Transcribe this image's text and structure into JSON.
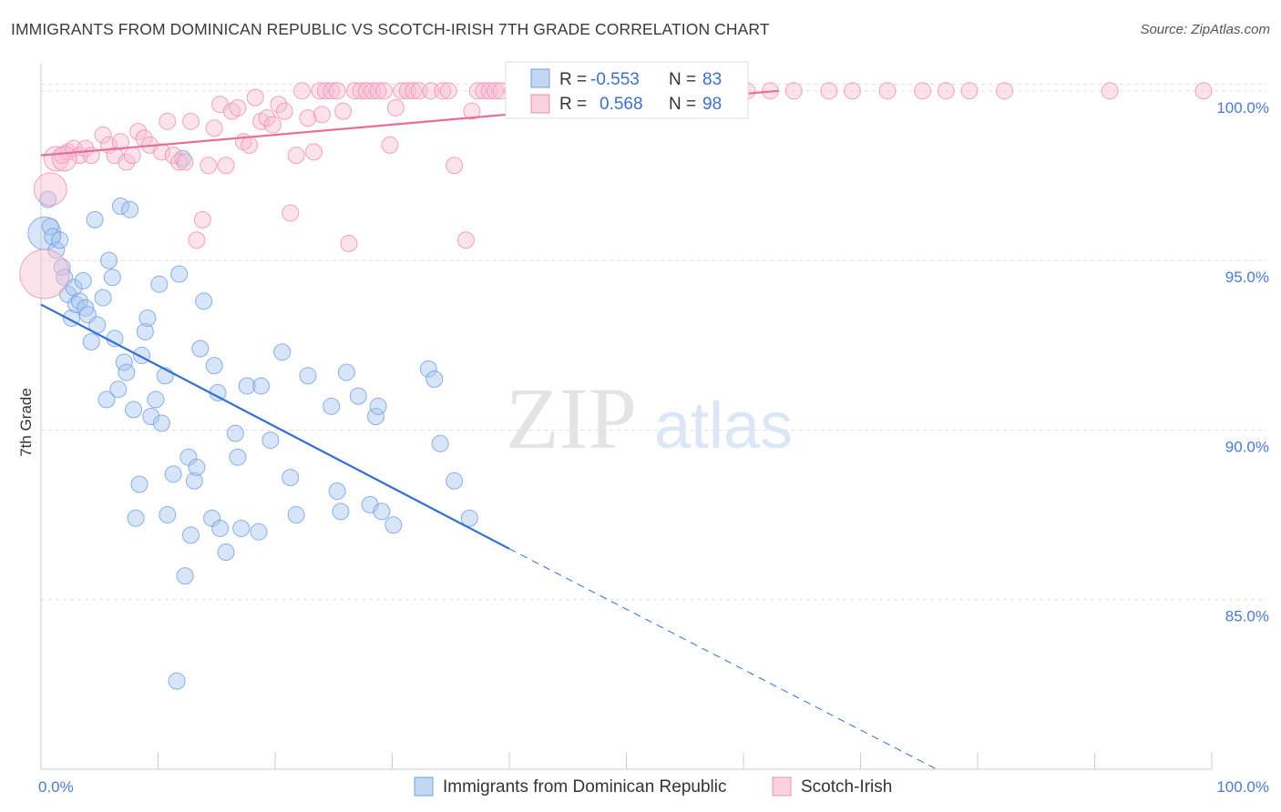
{
  "title": "IMMIGRANTS FROM DOMINICAN REPUBLIC VS SCOTCH-IRISH 7TH GRADE CORRELATION CHART",
  "source": "Source: ZipAtlas.com",
  "watermark": {
    "zip": "ZIP",
    "atlas": "atlas"
  },
  "colors": {
    "blue": "#6f9fe0",
    "blue_fill": "#a9c6f0",
    "blue_line": "#2f6fd6",
    "pink": "#ee8fb0",
    "pink_fill": "#f7bfd3",
    "pink_line": "#e86d98",
    "tick": "#4a7bd0",
    "grid": "#dddddd"
  },
  "chart_data": {
    "type": "scatter",
    "xlabel": "",
    "ylabel": "7th Grade",
    "xlim": [
      0,
      100
    ],
    "ylim": [
      80.0,
      100.8
    ],
    "x_tick_labels": [
      {
        "value": 0,
        "label": "0.0%"
      },
      {
        "value": 100,
        "label": "100.0%"
      }
    ],
    "y_ticks": [
      {
        "value": 85,
        "label": "85.0%"
      },
      {
        "value": 90,
        "label": "90.0%"
      },
      {
        "value": 95,
        "label": "95.0%"
      },
      {
        "value": 100,
        "label": "100.0%"
      }
    ],
    "legend": {
      "position": "top-center",
      "entries": [
        {
          "r_label": "R =",
          "r_value": "-0.553",
          "n_label": "N =",
          "n_value": "83"
        },
        {
          "r_label": "R =",
          "r_value": "0.568",
          "n_label": "N =",
          "n_value": "98"
        }
      ]
    },
    "series": [
      {
        "name": "Immigrants from Dominican Republic",
        "color": "#6f9fe0",
        "trend": {
          "x0": 0,
          "y0": 93.7,
          "x1": 40,
          "y1": 86.5,
          "dashed_to_x": 76.5,
          "dashed_to_y": 80.0
        },
        "points": [
          [
            0.3,
            95.8,
            2
          ],
          [
            0.6,
            96.8,
            1
          ],
          [
            0.8,
            96.0,
            1
          ],
          [
            1.0,
            95.7,
            1
          ],
          [
            1.3,
            95.3,
            1
          ],
          [
            1.6,
            95.6,
            1
          ],
          [
            1.8,
            94.8,
            1
          ],
          [
            2.0,
            94.5,
            1
          ],
          [
            2.3,
            94.0,
            1
          ],
          [
            2.6,
            93.3,
            1
          ],
          [
            2.8,
            94.2,
            1
          ],
          [
            3.0,
            93.7,
            1
          ],
          [
            3.3,
            93.8,
            1
          ],
          [
            3.6,
            94.4,
            1
          ],
          [
            3.8,
            93.6,
            1
          ],
          [
            4.0,
            93.4,
            1
          ],
          [
            4.3,
            92.6,
            1
          ],
          [
            4.6,
            96.2,
            1
          ],
          [
            4.8,
            93.1,
            1
          ],
          [
            5.3,
            93.9,
            1
          ],
          [
            5.6,
            90.9,
            1
          ],
          [
            5.8,
            95.0,
            1
          ],
          [
            6.1,
            94.5,
            1
          ],
          [
            6.3,
            92.7,
            1
          ],
          [
            6.6,
            91.2,
            1
          ],
          [
            6.8,
            96.6,
            1
          ],
          [
            7.1,
            92.0,
            1
          ],
          [
            7.3,
            91.7,
            1
          ],
          [
            7.6,
            96.5,
            1
          ],
          [
            7.9,
            90.6,
            1
          ],
          [
            8.1,
            87.4,
            1
          ],
          [
            8.4,
            88.4,
            1
          ],
          [
            8.6,
            92.2,
            1
          ],
          [
            8.9,
            92.9,
            1
          ],
          [
            9.1,
            93.3,
            1
          ],
          [
            9.4,
            90.4,
            1
          ],
          [
            9.8,
            90.9,
            1
          ],
          [
            10.1,
            94.3,
            1
          ],
          [
            10.3,
            90.2,
            1
          ],
          [
            10.6,
            91.6,
            1
          ],
          [
            10.8,
            87.5,
            1
          ],
          [
            11.3,
            88.7,
            1
          ],
          [
            11.6,
            82.6,
            1
          ],
          [
            11.8,
            94.6,
            1
          ],
          [
            12.1,
            98.0,
            1
          ],
          [
            12.3,
            85.7,
            1
          ],
          [
            12.6,
            89.2,
            1
          ],
          [
            12.8,
            86.9,
            1
          ],
          [
            13.1,
            88.5,
            1
          ],
          [
            13.3,
            88.9,
            1
          ],
          [
            13.6,
            92.4,
            1
          ],
          [
            13.9,
            93.8,
            1
          ],
          [
            14.6,
            87.4,
            1
          ],
          [
            14.8,
            91.9,
            1
          ],
          [
            15.1,
            91.1,
            1
          ],
          [
            15.3,
            87.1,
            1
          ],
          [
            15.8,
            86.4,
            1
          ],
          [
            16.6,
            89.9,
            1
          ],
          [
            16.8,
            89.2,
            1
          ],
          [
            17.1,
            87.1,
            1
          ],
          [
            17.6,
            91.3,
            1
          ],
          [
            18.6,
            87.0,
            1
          ],
          [
            18.8,
            91.3,
            1
          ],
          [
            19.6,
            89.7,
            1
          ],
          [
            20.6,
            92.3,
            1
          ],
          [
            21.3,
            88.6,
            1
          ],
          [
            21.8,
            87.5,
            1
          ],
          [
            22.8,
            91.6,
            1
          ],
          [
            24.8,
            90.7,
            1
          ],
          [
            25.3,
            88.2,
            1
          ],
          [
            25.6,
            87.6,
            1
          ],
          [
            26.1,
            91.7,
            1
          ],
          [
            27.1,
            91.0,
            1
          ],
          [
            28.1,
            87.8,
            1
          ],
          [
            28.6,
            90.4,
            1
          ],
          [
            28.8,
            90.7,
            1
          ],
          [
            29.1,
            87.6,
            1
          ],
          [
            30.1,
            87.2,
            1
          ],
          [
            33.1,
            91.8,
            1
          ],
          [
            33.6,
            91.5,
            1
          ],
          [
            34.1,
            89.6,
            1
          ],
          [
            35.3,
            88.5,
            1
          ],
          [
            36.6,
            87.4,
            1
          ]
        ]
      },
      {
        "name": "Scotch-Irish",
        "color": "#ee8fb0",
        "trend": {
          "x0": 0,
          "y0": 98.1,
          "x1": 63,
          "y1": 100.0
        },
        "points": [
          [
            0.3,
            94.6,
            3
          ],
          [
            0.8,
            97.1,
            2
          ],
          [
            1.3,
            98.0,
            1.5
          ],
          [
            1.8,
            98.1,
            1
          ],
          [
            2.3,
            98.2,
            1
          ],
          [
            2.8,
            98.3,
            1
          ],
          [
            3.3,
            98.1,
            1
          ],
          [
            3.8,
            98.3,
            1
          ],
          [
            4.3,
            98.1,
            1
          ],
          [
            5.3,
            98.7,
            1
          ],
          [
            5.8,
            98.4,
            1
          ],
          [
            6.3,
            98.1,
            1
          ],
          [
            6.8,
            98.5,
            1
          ],
          [
            7.3,
            97.9,
            1
          ],
          [
            7.8,
            98.1,
            1
          ],
          [
            8.3,
            98.8,
            1
          ],
          [
            8.8,
            98.6,
            1
          ],
          [
            9.3,
            98.4,
            1
          ],
          [
            10.3,
            98.2,
            1
          ],
          [
            10.8,
            99.1,
            1
          ],
          [
            11.3,
            98.1,
            1
          ],
          [
            11.8,
            97.9,
            1
          ],
          [
            12.3,
            97.9,
            1
          ],
          [
            12.8,
            99.1,
            1
          ],
          [
            13.3,
            95.6,
            1
          ],
          [
            13.8,
            96.2,
            1
          ],
          [
            14.3,
            97.8,
            1
          ],
          [
            14.8,
            98.9,
            1
          ],
          [
            15.3,
            99.6,
            1
          ],
          [
            15.8,
            97.8,
            1
          ],
          [
            16.3,
            99.4,
            1
          ],
          [
            16.8,
            99.5,
            1
          ],
          [
            17.3,
            98.5,
            1
          ],
          [
            17.8,
            98.4,
            1
          ],
          [
            18.3,
            99.8,
            1
          ],
          [
            18.8,
            99.1,
            1
          ],
          [
            19.3,
            99.2,
            1
          ],
          [
            19.8,
            99.0,
            1
          ],
          [
            20.3,
            99.6,
            1
          ],
          [
            20.8,
            99.4,
            1
          ],
          [
            21.3,
            96.4,
            1
          ],
          [
            21.8,
            98.1,
            1
          ],
          [
            22.3,
            100.0,
            1
          ],
          [
            22.8,
            99.2,
            1
          ],
          [
            23.3,
            98.2,
            1
          ],
          [
            23.8,
            100.0,
            1
          ],
          [
            24.3,
            100.0,
            1
          ],
          [
            24.8,
            100.0,
            1
          ],
          [
            25.3,
            100.0,
            1
          ],
          [
            25.8,
            99.4,
            1
          ],
          [
            26.3,
            95.5,
            1
          ],
          [
            26.8,
            100.0,
            1
          ],
          [
            27.3,
            100.0,
            1
          ],
          [
            27.8,
            100.0,
            1
          ],
          [
            28.3,
            100.0,
            1
          ],
          [
            28.8,
            100.0,
            1
          ],
          [
            29.3,
            100.0,
            1
          ],
          [
            29.8,
            98.4,
            1
          ],
          [
            30.3,
            99.5,
            1
          ],
          [
            30.8,
            100.0,
            1
          ],
          [
            31.3,
            100.0,
            1
          ],
          [
            31.8,
            100.0,
            1
          ],
          [
            32.3,
            100.0,
            1
          ],
          [
            33.3,
            100.0,
            1
          ],
          [
            34.3,
            100.0,
            1
          ],
          [
            34.8,
            100.0,
            1
          ],
          [
            35.3,
            97.8,
            1
          ],
          [
            36.3,
            95.6,
            1
          ],
          [
            36.8,
            99.4,
            1
          ],
          [
            37.3,
            100.0,
            1
          ],
          [
            37.8,
            100.0,
            1
          ],
          [
            38.3,
            100.0,
            1
          ],
          [
            38.8,
            100.0,
            1
          ],
          [
            39.3,
            100.0,
            1
          ],
          [
            40.3,
            100.0,
            1
          ],
          [
            41.3,
            100.0,
            1
          ],
          [
            42.3,
            100.0,
            1
          ],
          [
            44.3,
            100.0,
            1
          ],
          [
            45.3,
            100.0,
            1
          ],
          [
            47.3,
            100.0,
            1
          ],
          [
            49.3,
            100.0,
            1
          ],
          [
            53.3,
            100.0,
            1
          ],
          [
            55.3,
            100.0,
            1
          ],
          [
            57.3,
            100.0,
            1
          ],
          [
            60.3,
            100.0,
            1
          ],
          [
            62.3,
            100.0,
            1
          ],
          [
            64.3,
            100.0,
            1
          ],
          [
            67.3,
            100.0,
            1
          ],
          [
            69.3,
            100.0,
            1
          ],
          [
            72.3,
            100.0,
            1
          ],
          [
            75.3,
            100.0,
            1
          ],
          [
            77.3,
            100.0,
            1
          ],
          [
            79.3,
            100.0,
            1
          ],
          [
            82.3,
            100.0,
            1
          ],
          [
            91.3,
            100.0,
            1
          ],
          [
            99.3,
            100.0,
            1
          ],
          [
            2.0,
            98.0,
            1.5
          ],
          [
            24.0,
            99.3,
            1
          ]
        ]
      }
    ]
  }
}
